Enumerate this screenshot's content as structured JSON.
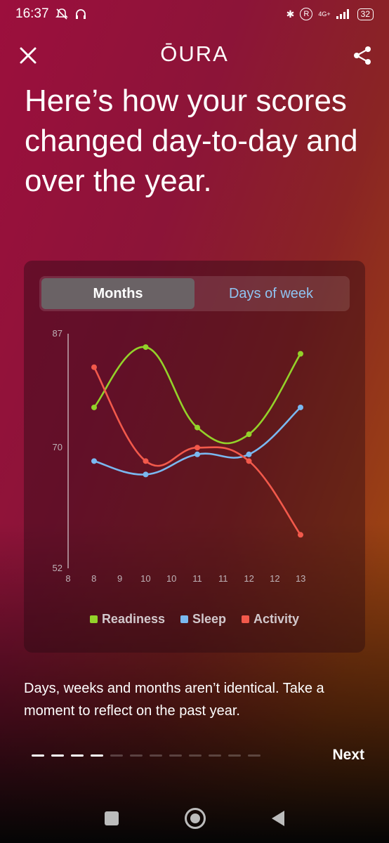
{
  "status": {
    "time": "16:37",
    "network": "4G+",
    "battery": "32"
  },
  "header": {
    "brand": "ŌURA",
    "close_icon": "close-icon",
    "share_icon": "share-icon"
  },
  "headline": "Here’s how your scores changed day-to-day and over the year.",
  "tabs": [
    {
      "label": "Months",
      "active": true
    },
    {
      "label": "Days of week",
      "active": false
    }
  ],
  "chart_data": {
    "type": "line",
    "x_ticks": [
      "8",
      "8",
      "9",
      "10",
      "10",
      "11",
      "11",
      "12",
      "12",
      "13"
    ],
    "y_ticks": [
      "87",
      "70",
      "52"
    ],
    "ylim": [
      52,
      87
    ],
    "x": [
      8,
      9,
      10,
      11,
      12
    ],
    "series": [
      {
        "name": "Readiness",
        "color": "#93d22a",
        "values": [
          76,
          85,
          73,
          72,
          84
        ]
      },
      {
        "name": "Sleep",
        "color": "#7ab8f0",
        "values": [
          68,
          66,
          69,
          69,
          76
        ]
      },
      {
        "name": "Activity",
        "color": "#f2594b",
        "values": [
          82,
          68,
          70,
          68,
          57
        ]
      }
    ],
    "legend_position": "bottom"
  },
  "description": "Days, weeks and months aren’t identical. Take a moment to reflect on the past year.",
  "pager": {
    "total": 12,
    "current": 4
  },
  "next_label": "Next"
}
